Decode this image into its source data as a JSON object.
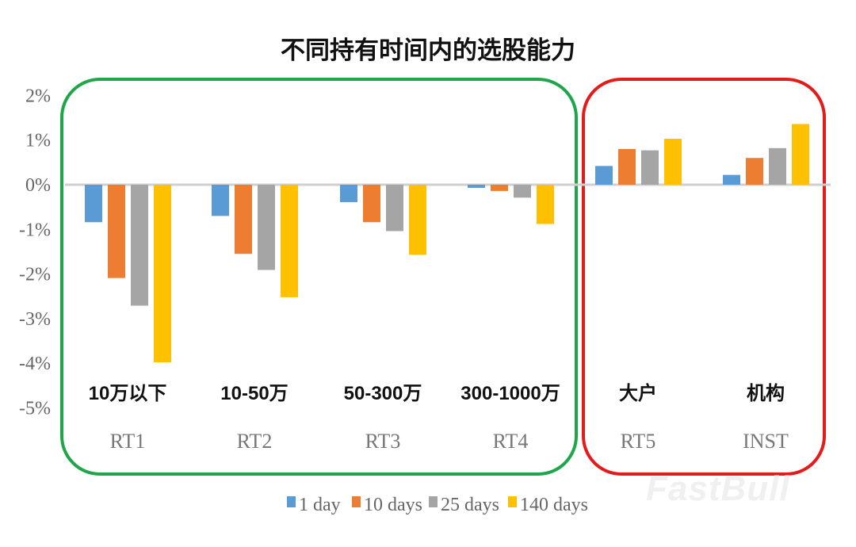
{
  "chart_data": {
    "type": "bar",
    "title": "不同持有时间内的选股能力",
    "categories": [
      "RT1",
      "RT2",
      "RT3",
      "RT4",
      "RT5",
      "INST"
    ],
    "category_annotations": [
      "10万以下",
      "10-50万",
      "50-300万",
      "300-1000万",
      "大户",
      "机构"
    ],
    "ylim": [
      -5,
      2
    ],
    "yticks": [
      "2%",
      "1%",
      "0%",
      "-1%",
      "-2%",
      "-3%",
      "-4%",
      "-5%"
    ],
    "y_unit": "%",
    "grid": false,
    "legend": "bottom",
    "series": [
      {
        "name": "1 day",
        "color": "#5B9BD5",
        "values": [
          -0.84,
          -0.7,
          -0.39,
          -0.07,
          0.42,
          0.22
        ]
      },
      {
        "name": "10 days",
        "color": "#ED7D31",
        "values": [
          -2.09,
          -1.55,
          -0.84,
          -0.14,
          0.8,
          0.6
        ]
      },
      {
        "name": "25 days",
        "color": "#A5A5A5",
        "values": [
          -2.71,
          -1.91,
          -1.04,
          -0.29,
          0.77,
          0.82
        ]
      },
      {
        "name": "140 days",
        "color": "#FFC000",
        "values": [
          -3.98,
          -2.52,
          -1.57,
          -0.88,
          1.03,
          1.36
        ]
      }
    ],
    "groups": [
      {
        "categories": [
          "RT1",
          "RT2",
          "RT3",
          "RT4"
        ],
        "outline_color": "#1FA64A"
      },
      {
        "categories": [
          "RT5",
          "INST"
        ],
        "outline_color": "#E31B1B"
      }
    ]
  },
  "watermark": "FastBull"
}
